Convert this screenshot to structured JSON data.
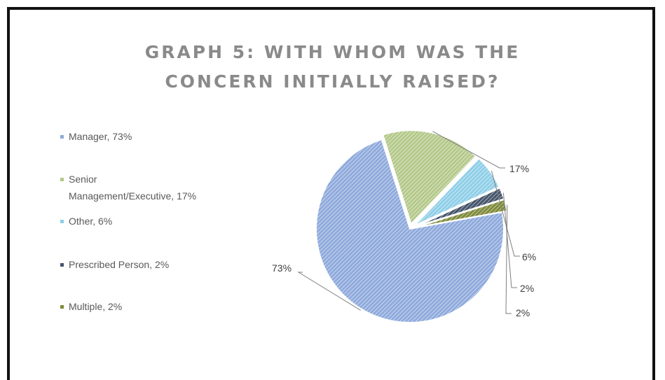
{
  "title_line1": "GRAPH 5: WITH WHOM WAS THE",
  "title_line2": "CONCERN INITIALLY RAISED?",
  "colors": {
    "manager": "#8faadc",
    "senior": "#b4c98a",
    "other": "#8fcfe8",
    "prescribed": "#44546a",
    "multiple": "#7f8a3a"
  },
  "chart_data": {
    "type": "pie",
    "title": "GRAPH 5: WITH WHOM WAS THE CONCERN INITIALLY RAISED?",
    "categories": [
      "Manager",
      "Senior Management/Executive",
      "Other",
      "Prescribed Person",
      "Multiple"
    ],
    "values": [
      73,
      17,
      6,
      2,
      2
    ],
    "data_labels": [
      "73%",
      "17%",
      "6%",
      "2%",
      "2%"
    ],
    "legend": [
      {
        "line1": "Manager, 73%",
        "line2": ""
      },
      {
        "line1": "Senior",
        "line2": "Management/Executive, 17%"
      },
      {
        "line1": "Other, 6%",
        "line2": ""
      },
      {
        "line1": "Prescribed Person, 2%",
        "line2": ""
      },
      {
        "line1": "Multiple, 2%",
        "line2": ""
      }
    ],
    "legend_position": "left"
  }
}
